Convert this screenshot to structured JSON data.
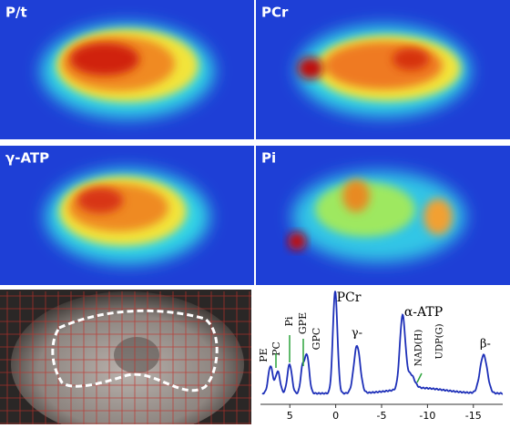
{
  "panels": [
    {
      "label": "P/t"
    },
    {
      "label": "PCr"
    },
    {
      "label": "γ-ATP"
    },
    {
      "label": "Pi"
    }
  ],
  "spectrum": {
    "peak_labels": [
      "PE",
      "PC",
      "Pi",
      "GPE",
      "GPC",
      "PCr",
      "γ-",
      "α-ATP",
      "NAD(H)",
      "UDP(G)",
      "β-"
    ],
    "xlim": [
      8,
      -18
    ],
    "xticks": [
      5,
      0,
      -5,
      -10,
      -15
    ]
  }
}
